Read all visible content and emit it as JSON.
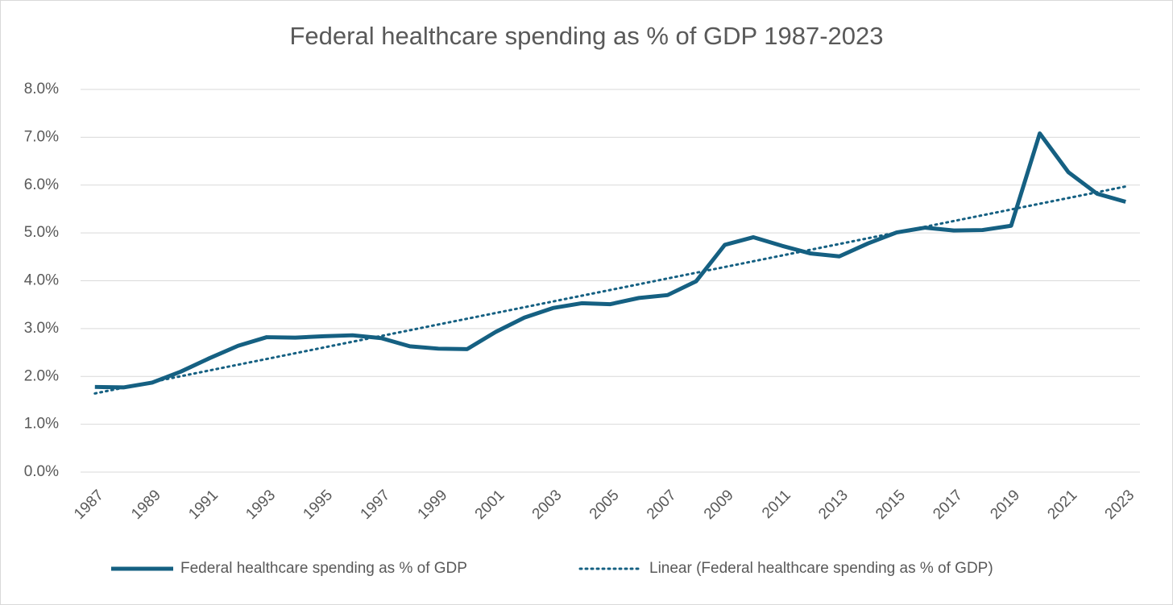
{
  "chart_data": {
    "type": "line",
    "title": "Federal healthcare spending as % of GDP 1987-2023",
    "x": [
      1987,
      1988,
      1989,
      1990,
      1991,
      1992,
      1993,
      1994,
      1995,
      1996,
      1997,
      1998,
      1999,
      2000,
      2001,
      2002,
      2003,
      2004,
      2005,
      2006,
      2007,
      2008,
      2009,
      2010,
      2011,
      2012,
      2013,
      2014,
      2015,
      2016,
      2017,
      2018,
      2019,
      2020,
      2021,
      2022,
      2023
    ],
    "series": [
      {
        "name": "Federal healthcare spending as % of GDP",
        "color": "#156082",
        "values": [
          1.78,
          1.77,
          1.87,
          2.1,
          2.38,
          2.64,
          2.82,
          2.81,
          2.84,
          2.86,
          2.8,
          2.63,
          2.58,
          2.57,
          2.93,
          3.23,
          3.43,
          3.53,
          3.51,
          3.64,
          3.7,
          3.99,
          4.75,
          4.91,
          4.73,
          4.57,
          4.51,
          4.78,
          5.01,
          5.11,
          5.05,
          5.06,
          5.15,
          7.08,
          6.27,
          5.82,
          5.65
        ]
      }
    ],
    "trendline": {
      "name": "Linear (Federal healthcare spending as % of GDP)",
      "type": "linear",
      "color": "#156082",
      "style": "dotted"
    },
    "xlim": [
      1986.5,
      2023.5
    ],
    "xticks": [
      1987,
      1989,
      1991,
      1993,
      1995,
      1997,
      1999,
      2001,
      2003,
      2005,
      2007,
      2009,
      2011,
      2013,
      2015,
      2017,
      2019,
      2021,
      2023
    ],
    "ylim": [
      0,
      8
    ],
    "yticks": [
      {
        "value": 0,
        "label": "0.0%"
      },
      {
        "value": 1,
        "label": "1.0%"
      },
      {
        "value": 2,
        "label": "2.0%"
      },
      {
        "value": 3,
        "label": "3.0%"
      },
      {
        "value": 4,
        "label": "4.0%"
      },
      {
        "value": 5,
        "label": "5.0%"
      },
      {
        "value": 6,
        "label": "6.0%"
      },
      {
        "value": 7,
        "label": "7.0%"
      },
      {
        "value": 8,
        "label": "8.0%"
      }
    ],
    "grid": true,
    "legend": "bottom"
  }
}
